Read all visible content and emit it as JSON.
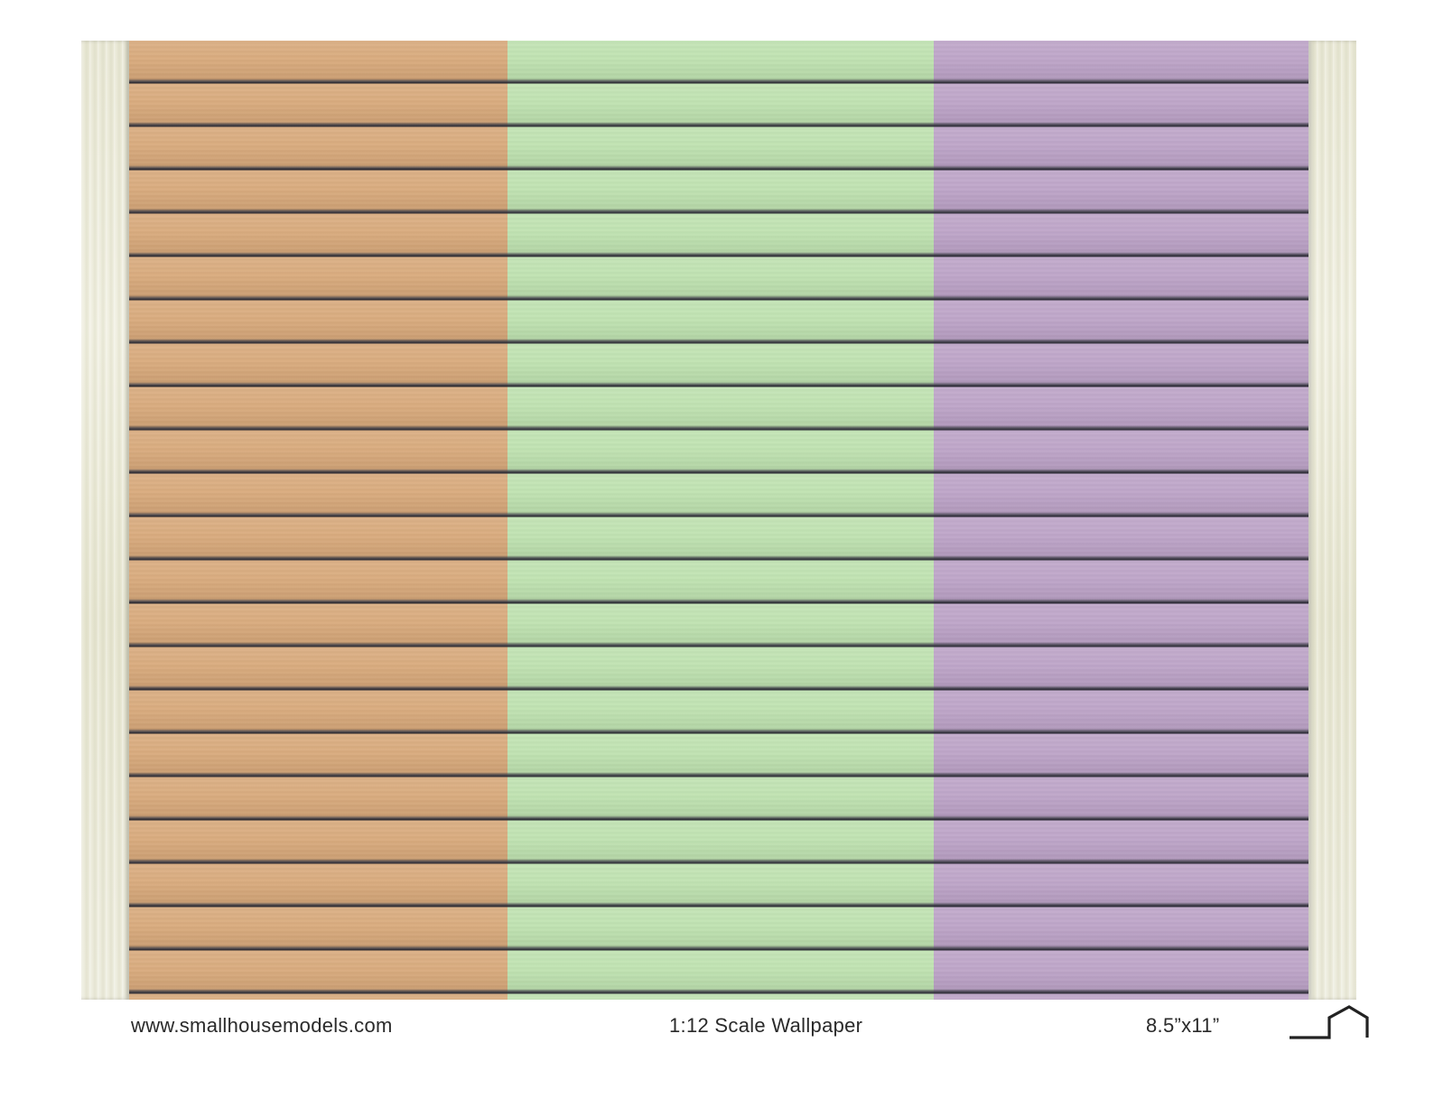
{
  "colors": {
    "panel_1": "#d9a97a",
    "panel_2": "#bfe3b0",
    "panel_3": "#bda3c8",
    "trim": "#ecebd9"
  },
  "footer": {
    "url": "www.smallhousemodels.com",
    "title": "1:12 Scale Wallpaper",
    "size": "8.5”x11”"
  },
  "logo": {
    "icon": "house-outline-icon"
  }
}
